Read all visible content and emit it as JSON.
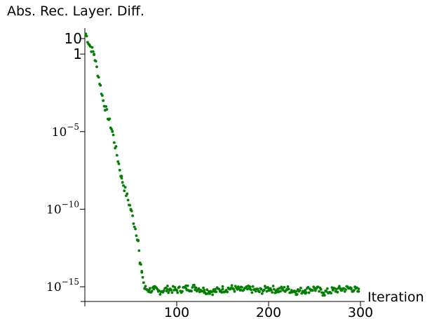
{
  "chart_data": {
    "type": "scatter",
    "ylabel": "Abs. Rec. Layer. Diff.",
    "xlabel": "Iteration",
    "yscale": "log",
    "ylim": [
      1e-16,
      100
    ],
    "xlim": [
      0,
      300
    ],
    "x_ticks": [
      {
        "value": 100,
        "label": "100"
      },
      {
        "value": 200,
        "label": "200"
      },
      {
        "value": 300,
        "label": "300"
      }
    ],
    "y_ticks": [
      {
        "value": 10,
        "label": "10",
        "style": "plain"
      },
      {
        "value": 1,
        "label": "1",
        "style": "plain"
      },
      {
        "value": 1e-05,
        "label": "10",
        "exponent": "−5",
        "style": "power"
      },
      {
        "value": 1e-10,
        "label": "10",
        "exponent": "−10",
        "style": "power"
      },
      {
        "value": 1e-15,
        "label": "10",
        "exponent": "−15",
        "style": "power"
      }
    ],
    "marker_color": "#007f00",
    "series": [
      {
        "x": [
          1,
          5,
          10,
          20,
          30,
          40,
          50,
          58,
          60,
          62,
          65,
          70,
          75,
          80,
          90,
          100,
          110,
          120,
          130,
          140,
          150,
          160,
          170,
          180,
          190,
          200,
          210,
          220,
          230,
          240,
          250,
          260,
          270,
          280,
          290,
          298
        ],
        "y": [
          20,
          4,
          1,
          0.001,
          1e-05,
          1e-08,
          1e-10,
          1e-12,
          3e-14,
          1e-14,
          8e-16,
          6e-16,
          7e-16,
          5e-16,
          7e-16,
          6e-16,
          8e-16,
          9e-16,
          6e-16,
          5e-16,
          7e-16,
          8e-16,
          6e-16,
          7e-16,
          5e-16,
          8e-16,
          6e-16,
          7e-16,
          5e-16,
          6e-16,
          8e-16,
          4e-16,
          6e-16,
          7e-16,
          8e-16,
          5e-16
        ]
      }
    ],
    "grid": false
  }
}
